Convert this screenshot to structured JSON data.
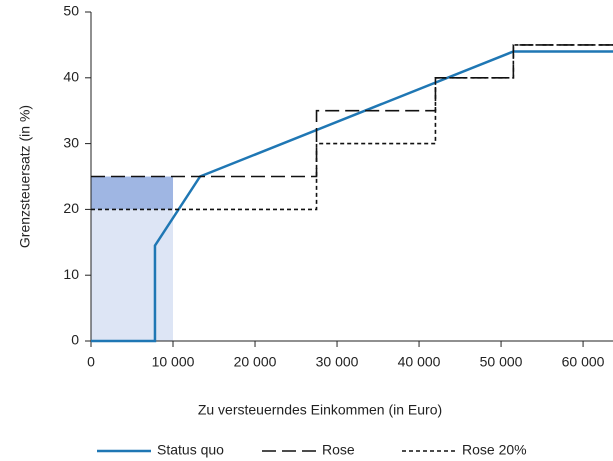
{
  "chart_data": {
    "type": "line",
    "xlabel": "Zu versteuerndes Einkommen (in Euro)",
    "ylabel": "Grenzsteuersatz (in %)",
    "xlim": [
      0,
      63650
    ],
    "ylim": [
      0,
      50
    ],
    "xticks": [
      0,
      {
        "value": 10000,
        "label": "10 000"
      },
      {
        "value": 20000,
        "label": "20 000"
      },
      {
        "value": 30000,
        "label": "30 000"
      },
      {
        "value": 40000,
        "label": "40 000"
      },
      {
        "value": 50000,
        "label": "50 000"
      },
      {
        "value": 60000,
        "label": "60 000"
      }
    ],
    "yticks": [
      0,
      10,
      20,
      30,
      40,
      50
    ],
    "bands": [
      {
        "x": [
          0,
          10000
        ],
        "y": [
          0,
          20
        ],
        "color": "#dde5f5"
      },
      {
        "x": [
          0,
          10000
        ],
        "y": [
          20,
          25
        ],
        "color": "#9fb6e3"
      }
    ],
    "series": [
      {
        "name": "Status quo",
        "color": "#1f77b4",
        "dash": "solid",
        "x": [
          0,
          7800,
          7800,
          13300,
          51500,
          63650
        ],
        "values": [
          0,
          0,
          14.5,
          25,
          44,
          44
        ]
      },
      {
        "name": "Rose",
        "color": "#111111",
        "dash": "dashed",
        "x": [
          0,
          27500,
          27500,
          42000,
          42000,
          51500,
          51500,
          63650
        ],
        "values": [
          25,
          25,
          35,
          35,
          40,
          40,
          45,
          45
        ]
      },
      {
        "name": "Rose 20%",
        "color": "#111111",
        "dash": "dotted",
        "x": [
          0,
          27500,
          27500,
          42000,
          42000,
          51500,
          51500,
          63650
        ],
        "values": [
          20,
          20,
          30,
          30,
          40,
          40,
          45,
          45
        ]
      }
    ]
  }
}
